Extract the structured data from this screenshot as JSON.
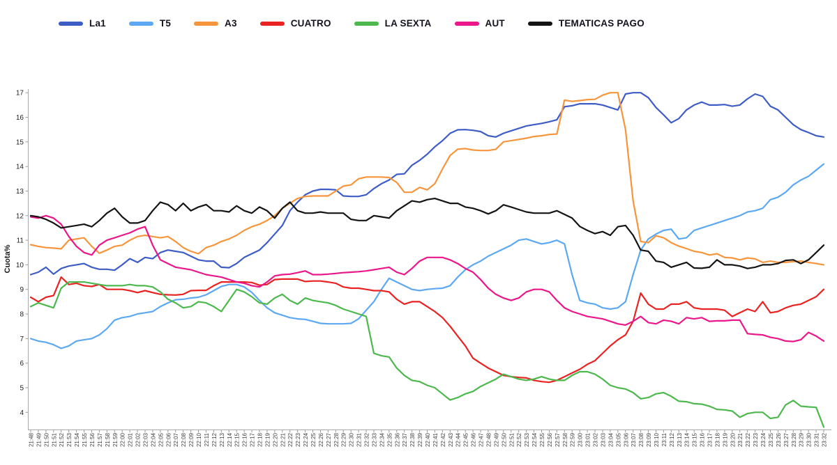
{
  "ylabel": "Cuota%",
  "chart_data": {
    "type": "line",
    "title": "",
    "xlabel": "",
    "ylabel": "Cuota%",
    "ylim": [
      4,
      17
    ],
    "yticks": [
      4,
      5,
      6,
      7,
      8,
      9,
      10,
      11,
      12,
      13,
      14,
      15,
      16,
      17
    ],
    "grid": false,
    "legend_position": "top",
    "x": [
      "21:48",
      "21:49",
      "21:50",
      "21:51",
      "21:52",
      "21:53",
      "21:54",
      "21:55",
      "21:56",
      "21:57",
      "21:58",
      "21:59",
      "22:00",
      "22:01",
      "22:02",
      "22:03",
      "22:04",
      "22:05",
      "22:06",
      "22:07",
      "22:08",
      "22:09",
      "22:10",
      "22:11",
      "22:12",
      "22:13",
      "22:14",
      "22:15",
      "22:16",
      "22:17",
      "22:18",
      "22:19",
      "22:20",
      "22:21",
      "22:22",
      "22:23",
      "22:24",
      "22:25",
      "22:26",
      "22:27",
      "22:28",
      "22:29",
      "22:30",
      "22:31",
      "22:32",
      "22:33",
      "22:34",
      "22:35",
      "22:36",
      "22:37",
      "22:38",
      "22:39",
      "22:40",
      "22:41",
      "22:42",
      "22:43",
      "22:44",
      "22:45",
      "22:46",
      "22:47",
      "22:48",
      "22:49",
      "22:50",
      "22:51",
      "22:52",
      "22:53",
      "22:54",
      "22:55",
      "22:56",
      "22:57",
      "22:58",
      "22:59",
      "23:00",
      "23:01",
      "23:02",
      "23:03",
      "23:04",
      "23:05",
      "23:06",
      "23:07",
      "23:08",
      "23:09",
      "23:10",
      "23:11",
      "23:12",
      "23:13",
      "23:14",
      "23:15",
      "23:16",
      "23:17",
      "23:18",
      "23:19",
      "23:20",
      "23:21",
      "23:22",
      "23:23",
      "23:24",
      "23:25",
      "23:26",
      "23:27",
      "23:28",
      "23:29",
      "23:30",
      "23:31",
      "23:32"
    ],
    "series": [
      {
        "name": "La1",
        "color": "#3e5cc5",
        "values": [
          9.6,
          9.7,
          9.9,
          9.62,
          9.85,
          9.95,
          10.0,
          10.05,
          9.9,
          9.82,
          9.82,
          9.78,
          10.0,
          10.25,
          10.1,
          10.3,
          10.25,
          10.5,
          10.6,
          10.55,
          10.5,
          10.35,
          10.2,
          10.15,
          10.15,
          9.9,
          9.88,
          10.05,
          10.3,
          10.45,
          10.6,
          10.9,
          11.25,
          11.6,
          12.2,
          12.55,
          12.85,
          13.0,
          13.07,
          13.07,
          13.05,
          12.8,
          12.78,
          12.78,
          12.85,
          13.1,
          13.3,
          13.45,
          13.68,
          13.7,
          14.05,
          14.25,
          14.5,
          14.8,
          15.05,
          15.35,
          15.49,
          15.5,
          15.47,
          15.42,
          15.25,
          15.2,
          15.35,
          15.45,
          15.55,
          15.65,
          15.7,
          15.75,
          15.82,
          15.9,
          16.43,
          16.47,
          16.55,
          16.55,
          16.55,
          16.5,
          16.4,
          16.3,
          16.95,
          17.0,
          17.0,
          16.8,
          16.4,
          16.1,
          15.78,
          15.95,
          16.3,
          16.5,
          16.62,
          16.5,
          16.5,
          16.52,
          16.45,
          16.5,
          16.75,
          16.95,
          16.85,
          16.45,
          16.3,
          16.0,
          15.7,
          15.5,
          15.38,
          15.25,
          15.2
        ]
      },
      {
        "name": "T5",
        "color": "#5ca8f2",
        "values": [
          7.0,
          6.9,
          6.85,
          6.75,
          6.6,
          6.7,
          6.9,
          6.95,
          7.0,
          7.15,
          7.4,
          7.75,
          7.85,
          7.9,
          8.0,
          8.05,
          8.1,
          8.3,
          8.45,
          8.58,
          8.6,
          8.65,
          8.68,
          8.78,
          8.95,
          9.12,
          9.2,
          9.2,
          9.1,
          8.88,
          8.55,
          8.25,
          8.05,
          7.95,
          7.85,
          7.8,
          7.78,
          7.7,
          7.62,
          7.6,
          7.6,
          7.6,
          7.62,
          7.8,
          8.15,
          8.5,
          9.0,
          9.45,
          9.3,
          9.15,
          9.0,
          8.95,
          9.0,
          9.03,
          9.05,
          9.15,
          9.5,
          9.8,
          10.0,
          10.15,
          10.35,
          10.5,
          10.65,
          10.8,
          11.0,
          11.05,
          10.95,
          10.85,
          10.9,
          11.0,
          10.85,
          9.6,
          8.55,
          8.45,
          8.4,
          8.25,
          8.2,
          8.25,
          8.5,
          9.6,
          10.6,
          11.05,
          11.25,
          11.4,
          11.45,
          11.05,
          11.1,
          11.4,
          11.5,
          11.6,
          11.7,
          11.8,
          11.9,
          12.0,
          12.15,
          12.2,
          12.3,
          12.65,
          12.75,
          12.95,
          13.25,
          13.45,
          13.6,
          13.85,
          14.1
        ]
      },
      {
        "name": "A3",
        "color": "#f6953c",
        "values": [
          10.82,
          10.75,
          10.7,
          10.68,
          10.65,
          11.0,
          11.05,
          11.1,
          10.75,
          10.47,
          10.6,
          10.75,
          10.8,
          11.0,
          11.15,
          11.2,
          11.15,
          11.1,
          11.15,
          10.95,
          10.7,
          10.55,
          10.45,
          10.7,
          10.8,
          10.95,
          11.05,
          11.2,
          11.4,
          11.55,
          11.65,
          11.8,
          12.0,
          12.3,
          12.5,
          12.7,
          12.78,
          12.8,
          12.8,
          12.8,
          13.0,
          13.2,
          13.25,
          13.5,
          13.57,
          13.57,
          13.57,
          13.55,
          13.35,
          12.95,
          12.95,
          13.15,
          13.05,
          13.3,
          13.9,
          14.45,
          14.7,
          14.73,
          14.67,
          14.65,
          14.65,
          14.7,
          15.0,
          15.05,
          15.1,
          15.15,
          15.22,
          15.25,
          15.3,
          15.32,
          16.7,
          16.65,
          16.68,
          16.72,
          16.73,
          16.9,
          17.0,
          17.0,
          15.5,
          12.6,
          10.95,
          10.9,
          11.18,
          11.1,
          10.9,
          10.76,
          10.66,
          10.55,
          10.5,
          10.4,
          10.45,
          10.3,
          10.28,
          10.2,
          10.28,
          10.24,
          10.1,
          10.15,
          10.1,
          10.1,
          10.13,
          10.15,
          10.1,
          10.05,
          10.0
        ]
      },
      {
        "name": "CUATRO",
        "color": "#e92222",
        "values": [
          8.68,
          8.5,
          8.68,
          8.75,
          9.5,
          9.2,
          9.25,
          9.15,
          9.12,
          9.2,
          9.0,
          9.0,
          9.0,
          8.95,
          8.87,
          8.95,
          8.87,
          8.8,
          8.78,
          8.77,
          8.8,
          8.95,
          8.96,
          8.96,
          9.15,
          9.3,
          9.3,
          9.3,
          9.3,
          9.28,
          9.17,
          9.2,
          9.4,
          9.42,
          9.42,
          9.42,
          9.32,
          9.34,
          9.34,
          9.3,
          9.25,
          9.1,
          9.05,
          9.05,
          9.0,
          8.95,
          8.95,
          8.9,
          8.6,
          8.4,
          8.5,
          8.5,
          8.3,
          8.1,
          7.85,
          7.5,
          7.1,
          6.7,
          6.2,
          6.0,
          5.8,
          5.65,
          5.5,
          5.45,
          5.42,
          5.4,
          5.3,
          5.25,
          5.22,
          5.3,
          5.45,
          5.6,
          5.75,
          5.95,
          6.1,
          6.4,
          6.7,
          6.95,
          7.15,
          7.7,
          8.85,
          8.4,
          8.2,
          8.2,
          8.4,
          8.4,
          8.5,
          8.25,
          8.2,
          8.2,
          8.2,
          8.15,
          7.9,
          8.05,
          8.2,
          8.1,
          8.5,
          8.05,
          8.1,
          8.25,
          8.35,
          8.4,
          8.55,
          8.7,
          9.0
        ]
      },
      {
        "name": "LA SEXTA",
        "color": "#4db84d",
        "values": [
          8.3,
          8.45,
          8.35,
          8.25,
          9.05,
          9.3,
          9.3,
          9.3,
          9.25,
          9.2,
          9.15,
          9.15,
          9.15,
          9.2,
          9.15,
          9.15,
          9.1,
          8.9,
          8.6,
          8.45,
          8.25,
          8.3,
          8.5,
          8.45,
          8.3,
          8.1,
          8.55,
          9.0,
          8.9,
          8.7,
          8.45,
          8.4,
          8.65,
          8.8,
          8.55,
          8.4,
          8.65,
          8.55,
          8.5,
          8.45,
          8.35,
          8.2,
          8.1,
          8.0,
          7.9,
          6.4,
          6.3,
          6.25,
          5.8,
          5.5,
          5.3,
          5.25,
          5.1,
          5.0,
          4.75,
          4.5,
          4.6,
          4.75,
          4.85,
          5.05,
          5.2,
          5.35,
          5.55,
          5.45,
          5.35,
          5.3,
          5.35,
          5.45,
          5.35,
          5.3,
          5.3,
          5.5,
          5.65,
          5.65,
          5.55,
          5.35,
          5.1,
          5.0,
          4.95,
          4.8,
          4.55,
          4.6,
          4.75,
          4.8,
          4.65,
          4.45,
          4.43,
          4.35,
          4.33,
          4.25,
          4.12,
          4.1,
          4.05,
          3.8,
          3.95,
          4.0,
          4.0,
          3.75,
          3.8,
          4.3,
          4.48,
          4.25,
          4.22,
          4.2,
          3.4
        ]
      },
      {
        "name": "AUT",
        "color": "#ec168b",
        "values": [
          11.95,
          11.9,
          12.0,
          11.9,
          11.65,
          11.15,
          10.75,
          10.5,
          10.4,
          10.8,
          11.0,
          11.1,
          11.2,
          11.3,
          11.45,
          11.55,
          10.8,
          10.2,
          10.05,
          9.9,
          9.85,
          9.8,
          9.7,
          9.6,
          9.55,
          9.5,
          9.4,
          9.3,
          9.25,
          9.15,
          9.1,
          9.3,
          9.55,
          9.6,
          9.62,
          9.68,
          9.75,
          9.6,
          9.6,
          9.62,
          9.65,
          9.68,
          9.7,
          9.72,
          9.75,
          9.8,
          9.85,
          9.9,
          9.7,
          9.6,
          9.85,
          10.15,
          10.3,
          10.3,
          10.3,
          10.2,
          10.05,
          9.85,
          9.7,
          9.4,
          9.05,
          8.8,
          8.65,
          8.55,
          8.65,
          8.9,
          9.0,
          9.0,
          8.9,
          8.55,
          8.25,
          8.1,
          8.0,
          7.9,
          7.85,
          7.8,
          7.7,
          7.6,
          7.55,
          7.7,
          7.9,
          7.65,
          7.6,
          7.75,
          7.7,
          7.6,
          7.85,
          7.8,
          7.85,
          7.7,
          7.72,
          7.72,
          7.75,
          7.75,
          7.2,
          7.17,
          7.15,
          7.05,
          7.0,
          6.9,
          6.88,
          6.95,
          7.25,
          7.1,
          6.9
        ]
      },
      {
        "name": "TEMATICAS PAGO",
        "color": "#141414",
        "values": [
          12.0,
          11.95,
          11.85,
          11.7,
          11.5,
          11.55,
          11.6,
          11.65,
          11.55,
          11.8,
          12.1,
          12.3,
          11.95,
          11.7,
          11.7,
          11.8,
          12.2,
          12.55,
          12.45,
          12.2,
          12.5,
          12.2,
          12.35,
          12.45,
          12.2,
          12.2,
          12.15,
          12.4,
          12.2,
          12.1,
          12.35,
          12.2,
          11.9,
          12.3,
          12.55,
          12.2,
          12.1,
          12.1,
          12.15,
          12.1,
          12.1,
          12.1,
          11.85,
          11.8,
          11.8,
          12.0,
          11.95,
          11.9,
          12.2,
          12.4,
          12.6,
          12.55,
          12.65,
          12.7,
          12.6,
          12.5,
          12.5,
          12.35,
          12.3,
          12.2,
          12.07,
          12.2,
          12.44,
          12.35,
          12.25,
          12.15,
          12.1,
          12.1,
          12.1,
          12.2,
          12.05,
          11.9,
          11.56,
          11.4,
          11.27,
          11.35,
          11.2,
          11.55,
          11.6,
          11.2,
          10.6,
          10.55,
          10.15,
          10.1,
          9.9,
          10.0,
          10.1,
          9.87,
          9.86,
          9.9,
          10.2,
          10.0,
          10.0,
          9.95,
          9.85,
          9.9,
          10.0,
          10.0,
          10.05,
          10.18,
          10.2,
          10.05,
          10.2,
          10.5,
          10.8
        ]
      }
    ]
  }
}
